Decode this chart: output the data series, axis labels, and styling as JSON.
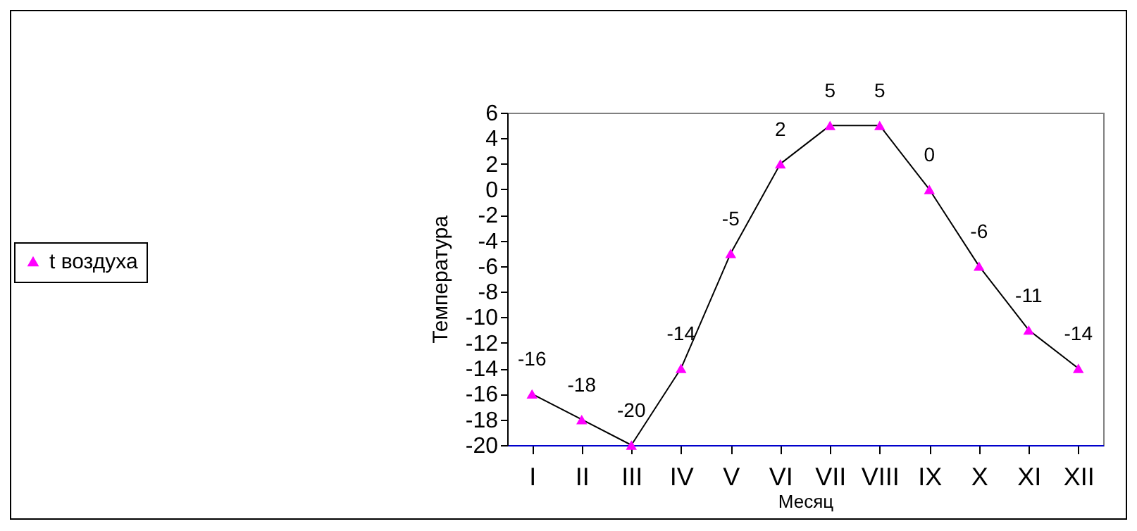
{
  "chart_data": {
    "type": "line",
    "xlabel": "Месяц",
    "ylabel": "Температура",
    "categories": [
      "I",
      "II",
      "III",
      "IV",
      "V",
      "VI",
      "VII",
      "VIII",
      "IX",
      "X",
      "XI",
      "XII"
    ],
    "series": [
      {
        "name": "t воздуха",
        "color": "#ff00ff",
        "values": [
          -16,
          -18,
          -20,
          -14,
          -5,
          2,
          5,
          5,
          0,
          -6,
          -11,
          -14
        ]
      }
    ],
    "ylim": [
      -20,
      6
    ],
    "yticks": [
      -20,
      -18,
      -16,
      -14,
      -12,
      -10,
      -8,
      -6,
      -4,
      -2,
      0,
      2,
      4,
      6
    ],
    "data_labels": true,
    "grid": false,
    "legend": "left",
    "marker": "triangle",
    "line_style": "solid"
  }
}
